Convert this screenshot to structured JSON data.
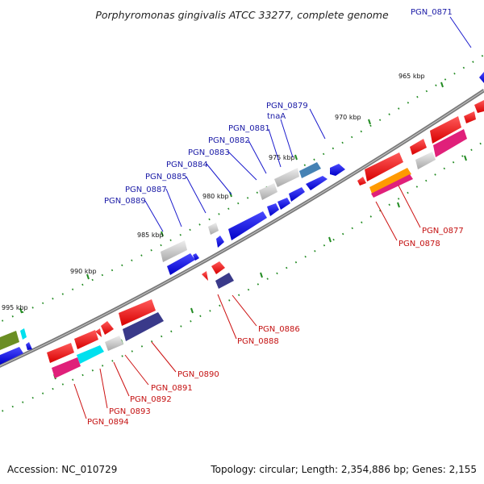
{
  "title": "Porphyromonas gingivalis ATCC 33277, complete genome",
  "footer": {
    "accession": "Accession: NC_010729",
    "summary": "Topology: circular; Length: 2,354,886 bp; Genes: 2,155"
  },
  "scale_labels": [
    "965 kbp",
    "970 kbp",
    "975 kbp",
    "980 kbp",
    "985 kbp",
    "990 kbp",
    "995 kbp"
  ],
  "outer_labels": [
    "PGN_0871",
    "PGN_0879",
    "tnaA",
    "PGN_0881",
    "PGN_0882",
    "PGN_0883",
    "PGN_0884",
    "PGN_0885",
    "PGN_0887",
    "PGN_0889"
  ],
  "inner_labels": [
    "PGN_0877",
    "PGN_0878",
    "PGN_0886",
    "PGN_0888",
    "PGN_0890",
    "PGN_0891",
    "PGN_0892",
    "PGN_0893",
    "PGN_0894"
  ],
  "colors": {
    "forward_cds": "#0000dd",
    "reverse_cds": "#ee0000",
    "grey_feature": "#bbbbbb",
    "steelblue_feature": "#4682b4",
    "magenta_feature": "#e0207a",
    "orange_feature": "#ff9a00",
    "cyan_feature": "#00e0ee",
    "navy_feature": "#3a3a8a",
    "olive_feature": "#6b8e23",
    "backbone": "#808080",
    "ticks": "#228b22",
    "label_forward": "#1a1aa6",
    "label_reverse": "#c41010"
  }
}
